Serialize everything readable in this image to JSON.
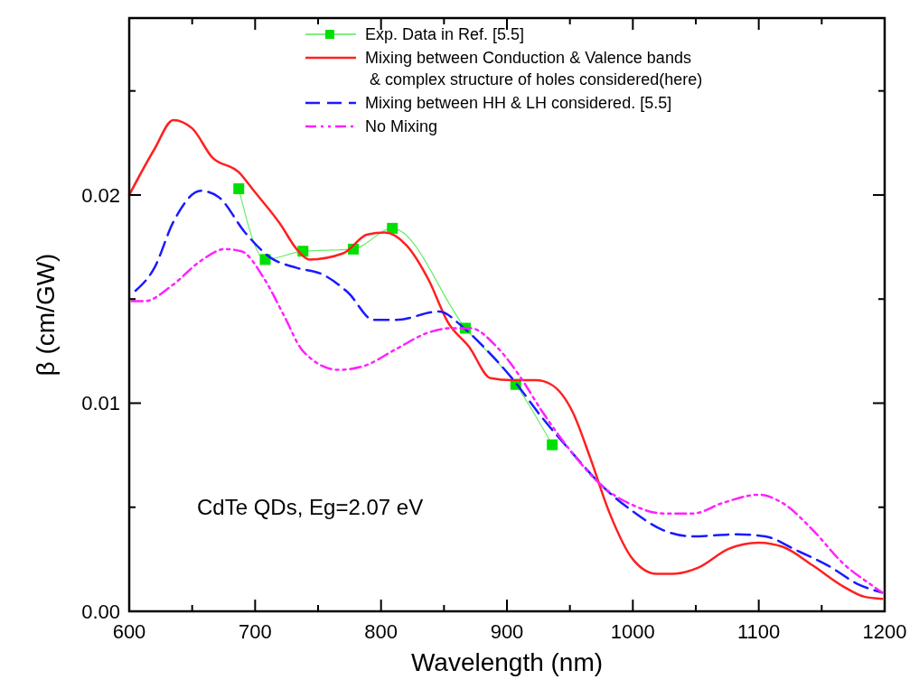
{
  "chart_data": {
    "type": "line",
    "xlabel": "Wavelength (nm)",
    "ylabel": "β (cm/GW)",
    "xlim": [
      600,
      1200
    ],
    "ylim": [
      0,
      0.0285
    ],
    "xticks": [
      600,
      {
        "value": 650,
        "label": null
      },
      700,
      {
        "value": 750,
        "label": null
      },
      800,
      {
        "value": 850,
        "label": null
      },
      900,
      {
        "value": 950,
        "label": null
      },
      1000,
      {
        "value": 1050,
        "label": null
      },
      1100,
      {
        "value": 1150,
        "label": null
      },
      1200
    ],
    "yticks": [
      {
        "value": 0,
        "label": "0.00"
      },
      {
        "value": 0.005,
        "label": null
      },
      {
        "value": 0.01,
        "label": "0.01"
      },
      {
        "value": 0.015,
        "label": null
      },
      {
        "value": 0.02,
        "label": "0.02"
      },
      {
        "value": 0.025,
        "label": null
      }
    ],
    "legend": "top right",
    "grid": false,
    "annotations": [
      "CdTe QDs, Eg=2.07 eV"
    ],
    "series": [
      {
        "name": "Exp. Data in Ref. [5.5]",
        "color": "#00e000",
        "marker": "square",
        "line_style": "solid",
        "x": [
          687,
          708,
          738,
          778,
          809,
          867,
          907,
          936
        ],
        "values": [
          0.0203,
          0.0169,
          0.0173,
          0.0174,
          0.0184,
          0.0136,
          0.0109,
          0.008
        ]
      },
      {
        "name": "Mixing between Conduction & Valence bands\n & complex structure of holes considered(here)",
        "color": "#ff2020",
        "marker": "none",
        "line_style": "solid",
        "x": [
          600,
          620,
          635,
          650,
          666,
          687,
          699,
          720,
          733,
          743,
          770,
          789,
          803,
          820,
          838,
          853,
          870,
          887,
          904,
          923,
          935,
          952,
          966,
          981,
          1000,
          1019,
          1031,
          1052,
          1076,
          1100,
          1119,
          1143,
          1167,
          1184,
          1198
        ],
        "values": [
          0.02,
          0.0222,
          0.0236,
          0.0232,
          0.0218,
          0.0211,
          0.0202,
          0.0186,
          0.0174,
          0.0169,
          0.0172,
          0.0181,
          0.0182,
          0.0176,
          0.0159,
          0.0139,
          0.0127,
          0.0112,
          0.0111,
          0.0111,
          0.0109,
          0.0096,
          0.0074,
          0.0048,
          0.0025,
          0.0018,
          0.0018,
          0.0021,
          0.003,
          0.0033,
          0.0031,
          0.0022,
          0.0012,
          0.0007,
          0.0006
        ]
      },
      {
        "name": "Mixing between HH & LH considered. [5.5]",
        "color": "#1a1aff",
        "marker": "none",
        "line_style": "dashed",
        "x": [
          605,
          620,
          635,
          657,
          671,
          692,
          712,
          733,
          753,
          774,
          794,
          812,
          846,
          866,
          880,
          904,
          928,
          952,
          976,
          1000,
          1024,
          1048,
          1083,
          1105,
          1131,
          1155,
          1179,
          1198
        ],
        "values": [
          0.0154,
          0.0165,
          0.0187,
          0.0202,
          0.0199,
          0.0182,
          0.017,
          0.0165,
          0.0162,
          0.0153,
          0.014,
          0.014,
          0.0144,
          0.0136,
          0.0128,
          0.0112,
          0.0093,
          0.0076,
          0.006,
          0.0048,
          0.0039,
          0.0036,
          0.0037,
          0.0036,
          0.0029,
          0.0022,
          0.0013,
          0.0009
        ]
      },
      {
        "name": "No Mixing",
        "color": "#ff20ff",
        "marker": "none",
        "line_style": "dotted",
        "x": [
          602,
          612,
          635,
          656,
          676,
          689,
          707,
          723,
          738,
          766,
          787,
          812,
          838,
          856,
          871,
          892,
          909,
          928,
          952,
          976,
          1000,
          1024,
          1048,
          1071,
          1100,
          1119,
          1143,
          1167,
          1191,
          1198
        ],
        "values": [
          0.0149,
          0.0149,
          0.0157,
          0.0168,
          0.0174,
          0.0173,
          0.016,
          0.0142,
          0.0125,
          0.0116,
          0.0118,
          0.0126,
          0.0134,
          0.0136,
          0.0136,
          0.0127,
          0.0114,
          0.0096,
          0.0076,
          0.006,
          0.0051,
          0.0047,
          0.0047,
          0.0052,
          0.0056,
          0.0052,
          0.0039,
          0.0023,
          0.0012,
          0.0009
        ]
      }
    ]
  }
}
